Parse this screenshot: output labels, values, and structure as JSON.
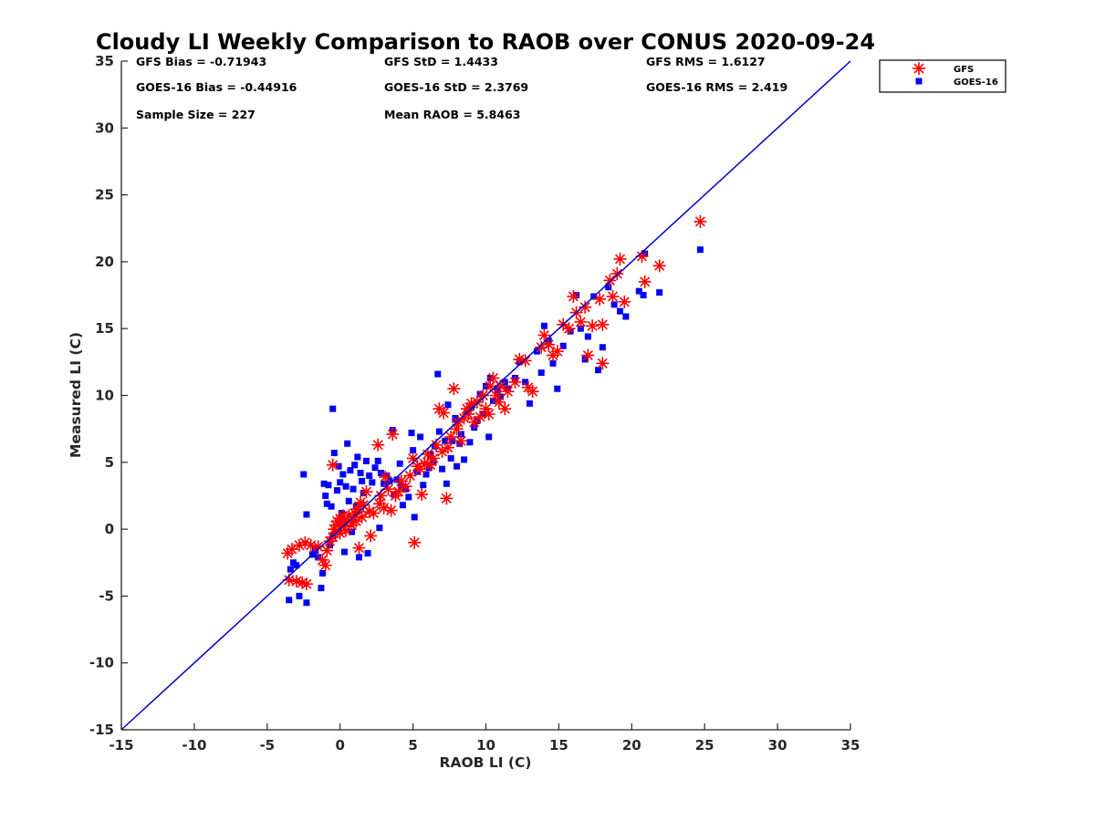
{
  "chart_data": {
    "type": "scatter",
    "title": "Cloudy LI Weekly Comparison to RAOB over CONUS 2020-09-24",
    "xlabel": "RAOB LI (C)",
    "ylabel": "Measured LI (C)",
    "xlim": [
      -15,
      35
    ],
    "ylim": [
      -15,
      35
    ],
    "xticks": [
      "-15",
      "-10",
      "-5",
      "0",
      "5",
      "10",
      "15",
      "20",
      "25",
      "30",
      "35"
    ],
    "yticks": [
      "35",
      "30",
      "25",
      "20",
      "15",
      "10",
      "5",
      "0",
      "-5",
      "-10",
      "-15"
    ],
    "grid": false,
    "legend_position": "outside-top-right",
    "stats": {
      "gfs_bias": "GFS Bias = -0.71943",
      "goes_bias": "GOES-16 Bias = -0.44916",
      "sample_size": "Sample Size = 227",
      "gfs_std": "GFS StD = 1.4433",
      "goes_std": "GOES-16 StD = 2.3769",
      "mean_raob": "Mean RAOB = 5.8463",
      "gfs_rms": "GFS RMS = 1.6127",
      "goes_rms": "GOES-16 RMS = 2.419"
    },
    "reference_line": {
      "from": [
        -15,
        -15
      ],
      "to": [
        35,
        35
      ],
      "color": "#0000cc"
    },
    "series": [
      {
        "name": "GFS",
        "marker": "asterisk",
        "color": "#ff0000",
        "points": [
          [
            -3.6,
            -1.8
          ],
          [
            -3.3,
            -1.5
          ],
          [
            -3.5,
            -3.8
          ],
          [
            -3.0,
            -3.9
          ],
          [
            -2.6,
            -4.0
          ],
          [
            -2.3,
            -4.1
          ],
          [
            -2.8,
            -1.2
          ],
          [
            -2.4,
            -1.0
          ],
          [
            -2.0,
            -1.2
          ],
          [
            -1.5,
            -1.3
          ],
          [
            -1.2,
            -2.3
          ],
          [
            -1.0,
            -2.7
          ],
          [
            -0.9,
            -1.6
          ],
          [
            -0.7,
            -0.9
          ],
          [
            -0.5,
            -0.6
          ],
          [
            -0.5,
            4.8
          ],
          [
            -0.4,
            0.0
          ],
          [
            -0.3,
            0.3
          ],
          [
            -0.2,
            0.6
          ],
          [
            0.0,
            -0.3
          ],
          [
            0.0,
            0.8
          ],
          [
            0.1,
            0.2
          ],
          [
            0.2,
            1.0
          ],
          [
            0.3,
            0.5
          ],
          [
            0.4,
            -0.1
          ],
          [
            0.5,
            0.7
          ],
          [
            0.6,
            1.0
          ],
          [
            0.8,
            0.3
          ],
          [
            0.9,
            0.9
          ],
          [
            1.0,
            1.2
          ],
          [
            1.1,
            0.6
          ],
          [
            1.2,
            1.5
          ],
          [
            1.3,
            -1.4
          ],
          [
            1.4,
            2.0
          ],
          [
            1.5,
            0.9
          ],
          [
            1.6,
            1.8
          ],
          [
            1.8,
            2.8
          ],
          [
            2.0,
            1.3
          ],
          [
            2.1,
            -0.5
          ],
          [
            2.3,
            1.2
          ],
          [
            2.6,
            6.3
          ],
          [
            2.7,
            1.9
          ],
          [
            2.8,
            2.5
          ],
          [
            3.0,
            1.6
          ],
          [
            3.1,
            3.9
          ],
          [
            3.3,
            3.0
          ],
          [
            3.5,
            1.4
          ],
          [
            3.6,
            7.1
          ],
          [
            3.8,
            2.5
          ],
          [
            4.0,
            2.8
          ],
          [
            4.2,
            3.6
          ],
          [
            4.5,
            3.2
          ],
          [
            4.8,
            4.0
          ],
          [
            5.0,
            5.3
          ],
          [
            5.1,
            -1.0
          ],
          [
            5.3,
            4.7
          ],
          [
            5.5,
            4.5
          ],
          [
            5.6,
            2.6
          ],
          [
            5.8,
            4.9
          ],
          [
            6.0,
            5.6
          ],
          [
            6.2,
            4.8
          ],
          [
            6.4,
            5.3
          ],
          [
            6.6,
            6.3
          ],
          [
            6.8,
            9.0
          ],
          [
            7.0,
            5.8
          ],
          [
            7.1,
            8.7
          ],
          [
            7.3,
            2.3
          ],
          [
            7.4,
            6.1
          ],
          [
            7.6,
            6.9
          ],
          [
            7.8,
            10.5
          ],
          [
            8.0,
            7.5
          ],
          [
            8.1,
            8.0
          ],
          [
            8.3,
            6.6
          ],
          [
            8.5,
            8.3
          ],
          [
            8.7,
            9.0
          ],
          [
            8.8,
            8.6
          ],
          [
            9.0,
            9.4
          ],
          [
            9.2,
            8.0
          ],
          [
            9.4,
            9.5
          ],
          [
            9.6,
            8.4
          ],
          [
            9.8,
            10.0
          ],
          [
            10.0,
            9.0
          ],
          [
            10.2,
            8.6
          ],
          [
            10.3,
            10.7
          ],
          [
            10.5,
            11.3
          ],
          [
            10.7,
            10.0
          ],
          [
            10.9,
            9.5
          ],
          [
            11.0,
            10.7
          ],
          [
            11.3,
            9.0
          ],
          [
            11.5,
            10.3
          ],
          [
            12.0,
            11.0
          ],
          [
            12.3,
            12.7
          ],
          [
            12.7,
            12.6
          ],
          [
            12.9,
            10.6
          ],
          [
            13.2,
            10.3
          ],
          [
            13.8,
            13.6
          ],
          [
            14.0,
            14.5
          ],
          [
            14.3,
            13.8
          ],
          [
            14.6,
            13.0
          ],
          [
            14.9,
            13.3
          ],
          [
            15.3,
            15.3
          ],
          [
            15.7,
            15.0
          ],
          [
            16.0,
            17.4
          ],
          [
            16.2,
            16.2
          ],
          [
            16.5,
            15.5
          ],
          [
            16.8,
            16.6
          ],
          [
            17.0,
            13.0
          ],
          [
            17.3,
            15.2
          ],
          [
            17.8,
            17.2
          ],
          [
            18.0,
            15.3
          ],
          [
            18.0,
            12.4
          ],
          [
            18.5,
            18.6
          ],
          [
            18.7,
            17.4
          ],
          [
            19.0,
            19.1
          ],
          [
            19.2,
            20.2
          ],
          [
            19.5,
            17.0
          ],
          [
            20.7,
            20.4
          ],
          [
            20.9,
            18.5
          ],
          [
            21.9,
            19.7
          ],
          [
            24.7,
            23.0
          ]
        ]
      },
      {
        "name": "GOES-16",
        "marker": "square",
        "color": "#0000ff",
        "points": [
          [
            -3.5,
            -5.3
          ],
          [
            -3.4,
            -3.0
          ],
          [
            -3.2,
            -2.5
          ],
          [
            -3.0,
            -2.7
          ],
          [
            -2.8,
            -5.0
          ],
          [
            -2.5,
            4.1
          ],
          [
            -2.3,
            -5.5
          ],
          [
            -2.3,
            1.1
          ],
          [
            -1.9,
            -1.9
          ],
          [
            -1.7,
            -1.6
          ],
          [
            -1.5,
            -2.1
          ],
          [
            -1.3,
            -4.4
          ],
          [
            -1.2,
            -3.3
          ],
          [
            -1.1,
            3.4
          ],
          [
            -1.0,
            2.5
          ],
          [
            -0.9,
            1.9
          ],
          [
            -0.8,
            3.3
          ],
          [
            -0.7,
            -1.2
          ],
          [
            -0.6,
            1.7
          ],
          [
            -0.5,
            9.0
          ],
          [
            -0.5,
            -0.5
          ],
          [
            -0.4,
            5.7
          ],
          [
            -0.3,
            -0.2
          ],
          [
            -0.2,
            2.9
          ],
          [
            -0.1,
            4.7
          ],
          [
            0.0,
            3.5
          ],
          [
            0.1,
            1.2
          ],
          [
            0.2,
            4.1
          ],
          [
            0.3,
            -1.7
          ],
          [
            0.4,
            3.2
          ],
          [
            0.5,
            6.4
          ],
          [
            0.6,
            2.1
          ],
          [
            0.7,
            4.4
          ],
          [
            0.8,
            -0.2
          ],
          [
            0.9,
            3.0
          ],
          [
            1.0,
            4.8
          ],
          [
            1.1,
            1.7
          ],
          [
            1.2,
            5.4
          ],
          [
            1.3,
            -2.1
          ],
          [
            1.4,
            4.2
          ],
          [
            1.5,
            3.6
          ],
          [
            1.6,
            2.7
          ],
          [
            1.8,
            5.1
          ],
          [
            1.9,
            -1.8
          ],
          [
            2.0,
            4.0
          ],
          [
            2.2,
            3.5
          ],
          [
            2.4,
            4.6
          ],
          [
            2.6,
            5.1
          ],
          [
            2.7,
            0.1
          ],
          [
            2.8,
            4.2
          ],
          [
            3.0,
            3.4
          ],
          [
            3.2,
            4.0
          ],
          [
            3.4,
            3.6
          ],
          [
            3.6,
            7.4
          ],
          [
            3.7,
            2.6
          ],
          [
            3.9,
            3.7
          ],
          [
            4.1,
            4.9
          ],
          [
            4.2,
            3.2
          ],
          [
            4.3,
            1.8
          ],
          [
            4.5,
            3.0
          ],
          [
            4.7,
            2.4
          ],
          [
            4.9,
            7.2
          ],
          [
            5.0,
            5.9
          ],
          [
            5.1,
            0.9
          ],
          [
            5.3,
            4.3
          ],
          [
            5.5,
            6.9
          ],
          [
            5.7,
            3.3
          ],
          [
            5.9,
            4.1
          ],
          [
            6.1,
            4.6
          ],
          [
            6.2,
            5.6
          ],
          [
            6.4,
            5.1
          ],
          [
            6.5,
            6.2
          ],
          [
            6.7,
            11.6
          ],
          [
            6.8,
            7.3
          ],
          [
            7.0,
            4.5
          ],
          [
            7.2,
            6.6
          ],
          [
            7.3,
            3.4
          ],
          [
            7.4,
            9.3
          ],
          [
            7.6,
            5.3
          ],
          [
            7.7,
            6.6
          ],
          [
            7.9,
            8.3
          ],
          [
            8.0,
            4.7
          ],
          [
            8.2,
            6.4
          ],
          [
            8.3,
            7.1
          ],
          [
            8.5,
            5.2
          ],
          [
            8.7,
            8.8
          ],
          [
            8.9,
            6.5
          ],
          [
            9.0,
            9.1
          ],
          [
            9.2,
            7.6
          ],
          [
            9.4,
            8.1
          ],
          [
            9.6,
            10.1
          ],
          [
            9.8,
            8.6
          ],
          [
            10.0,
            10.7
          ],
          [
            10.2,
            6.9
          ],
          [
            10.3,
            11.3
          ],
          [
            10.5,
            9.6
          ],
          [
            10.8,
            10.4
          ],
          [
            11.0,
            9.9
          ],
          [
            11.3,
            11.0
          ],
          [
            11.5,
            10.5
          ],
          [
            12.0,
            11.3
          ],
          [
            12.3,
            12.5
          ],
          [
            12.7,
            11.0
          ],
          [
            13.0,
            9.4
          ],
          [
            13.5,
            13.3
          ],
          [
            13.8,
            11.7
          ],
          [
            14.0,
            15.2
          ],
          [
            14.3,
            14.1
          ],
          [
            14.6,
            12.4
          ],
          [
            14.9,
            10.5
          ],
          [
            15.3,
            13.7
          ],
          [
            15.8,
            14.8
          ],
          [
            16.2,
            17.5
          ],
          [
            16.5,
            15.0
          ],
          [
            16.8,
            12.7
          ],
          [
            17.0,
            14.4
          ],
          [
            17.4,
            17.4
          ],
          [
            17.7,
            11.9
          ],
          [
            18.0,
            13.6
          ],
          [
            18.4,
            18.1
          ],
          [
            18.8,
            16.8
          ],
          [
            19.2,
            16.3
          ],
          [
            19.6,
            15.9
          ],
          [
            20.5,
            17.8
          ],
          [
            20.8,
            17.5
          ],
          [
            20.9,
            20.6
          ],
          [
            21.9,
            17.7
          ],
          [
            24.7,
            20.9
          ]
        ]
      }
    ]
  }
}
